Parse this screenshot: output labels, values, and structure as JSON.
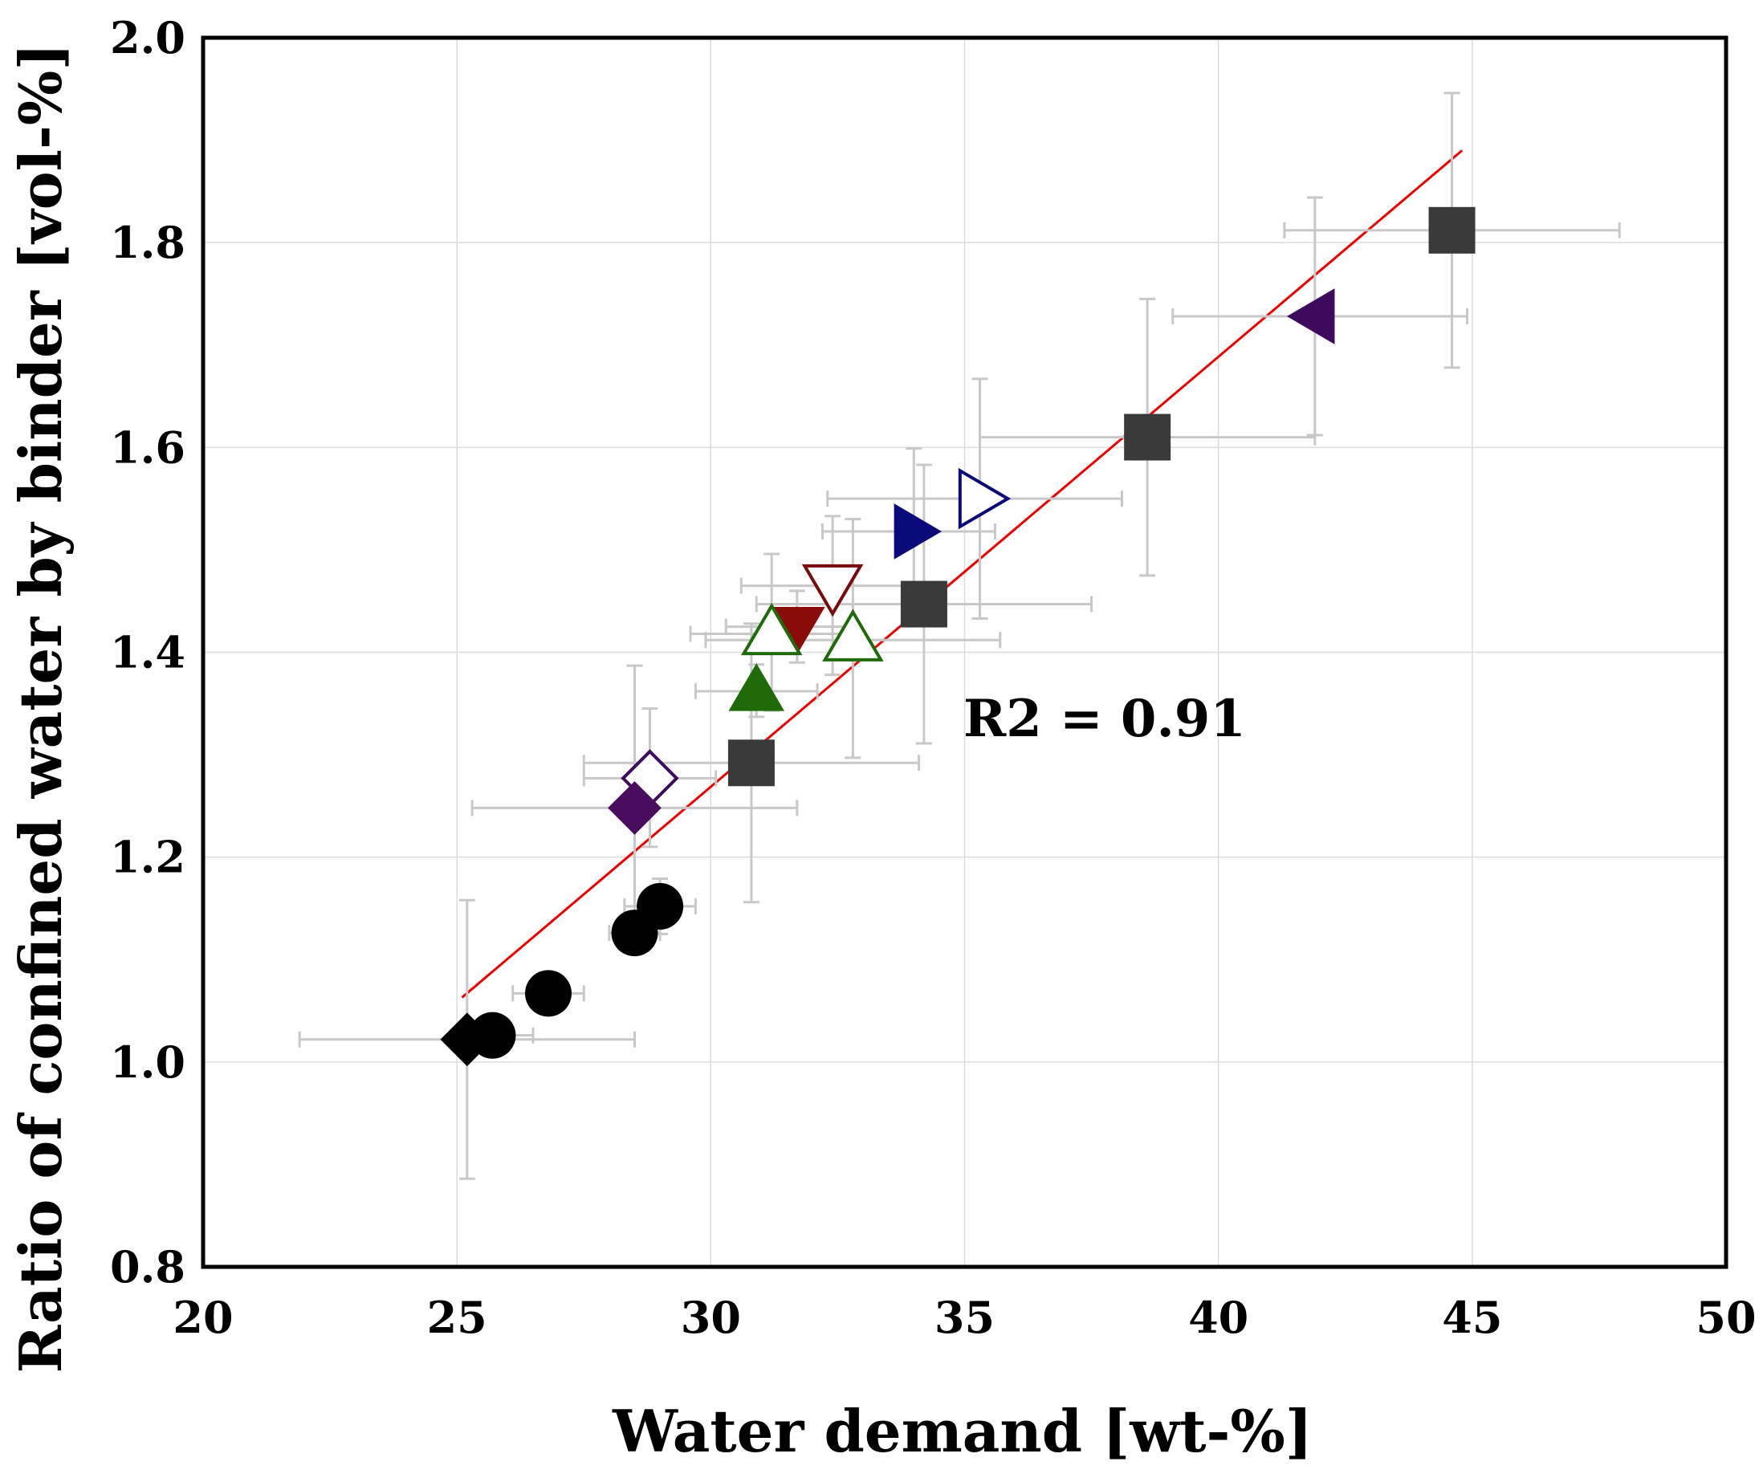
{
  "chart_data": {
    "type": "scatter",
    "title": "",
    "xlabel": "Water demand [wt-%]",
    "ylabel": "Ratio of confined water by binder [vol-%]",
    "xlim": [
      20,
      50
    ],
    "ylim": [
      0.8,
      2.0
    ],
    "x_ticks": [
      20,
      25,
      30,
      35,
      40,
      45,
      50
    ],
    "y_ticks": [
      0.8,
      1.0,
      1.2,
      1.4,
      1.6,
      1.8,
      2.0
    ],
    "x_tick_labels": [
      "20",
      "25",
      "30",
      "35",
      "40",
      "45",
      "50"
    ],
    "y_tick_labels": [
      "0.8",
      "1.0",
      "1.2",
      "1.4",
      "1.6",
      "1.8",
      "2.0"
    ],
    "grid": true,
    "legend": null,
    "annotation": "R2 = 0.91",
    "regression_line": {
      "color": "#ee0000",
      "x": [
        25.1,
        44.8
      ],
      "y": [
        1.063,
        1.89
      ]
    },
    "error_bar_color": "#c8c8c8",
    "points": [
      {
        "x": 44.6,
        "y": 1.812,
        "marker": "square",
        "fill": "#3a3a3a",
        "stroke": "#3a3a3a",
        "filled": true,
        "xerr": [
          41.3,
          47.9
        ],
        "yerr": [
          1.678,
          1.946
        ]
      },
      {
        "x": 38.6,
        "y": 1.61,
        "marker": "square",
        "fill": "#3a3a3a",
        "stroke": "#3a3a3a",
        "filled": true,
        "xerr": [
          35.3,
          41.9
        ],
        "yerr": [
          1.475,
          1.745
        ]
      },
      {
        "x": 34.2,
        "y": 1.447,
        "marker": "square",
        "fill": "#3a3a3a",
        "stroke": "#3a3a3a",
        "filled": true,
        "xerr": [
          30.9,
          37.5
        ],
        "yerr": [
          1.311,
          1.583
        ]
      },
      {
        "x": 30.8,
        "y": 1.292,
        "marker": "square",
        "fill": "#3a3a3a",
        "stroke": "#3a3a3a",
        "filled": true,
        "xerr": [
          27.5,
          34.1
        ],
        "yerr": [
          1.156,
          1.428
        ]
      },
      {
        "x": 41.9,
        "y": 1.728,
        "marker": "triangle-left",
        "fill": "#3d0a5e",
        "stroke": "#3d0a5e",
        "filled": true,
        "xerr": [
          39.1,
          44.9
        ],
        "yerr": [
          1.612,
          1.844
        ]
      },
      {
        "x": 34.0,
        "y": 1.518,
        "marker": "triangle-right",
        "fill": "#0a0a7a",
        "stroke": "#0a0a7a",
        "filled": true,
        "xerr": [
          32.2,
          35.6
        ],
        "yerr": [
          1.433,
          1.599
        ]
      },
      {
        "x": 35.3,
        "y": 1.55,
        "marker": "triangle-right",
        "fill": "#ffffff",
        "stroke": "#0a0a7a",
        "filled": false,
        "xerr": [
          32.3,
          38.1
        ],
        "yerr": [
          1.433,
          1.667
        ]
      },
      {
        "x": 32.4,
        "y": 1.465,
        "marker": "triangle-down",
        "fill": "#ffffff",
        "stroke": "#7a0a0a",
        "filled": false,
        "xerr": [
          30.6,
          34.2
        ],
        "yerr": [
          1.378,
          1.533
        ]
      },
      {
        "x": 31.7,
        "y": 1.425,
        "marker": "triangle-down",
        "fill": "#8b0a0a",
        "stroke": "#8b0a0a",
        "filled": true,
        "xerr": [
          30.3,
          32.8
        ],
        "yerr": [
          1.39,
          1.46
        ]
      },
      {
        "x": 31.2,
        "y": 1.418,
        "marker": "triangle-up",
        "fill": "#ffffff",
        "stroke": "#1f6b0a",
        "filled": false,
        "xerr": [
          29.6,
          32.8
        ],
        "yerr": [
          1.343,
          1.496
        ]
      },
      {
        "x": 32.8,
        "y": 1.412,
        "marker": "triangle-up",
        "fill": "#ffffff",
        "stroke": "#1f6b0a",
        "filled": false,
        "xerr": [
          29.9,
          35.7
        ],
        "yerr": [
          1.297,
          1.53
        ]
      },
      {
        "x": 30.9,
        "y": 1.362,
        "marker": "triangle-up",
        "fill": "#1f6b0a",
        "stroke": "#1f6b0a",
        "filled": true,
        "xerr": [
          29.7,
          32.1
        ],
        "yerr": [
          1.337,
          1.388
        ]
      },
      {
        "x": 28.8,
        "y": 1.277,
        "marker": "diamond",
        "fill": "#ffffff",
        "stroke": "#3d0a5e",
        "filled": false,
        "xerr": [
          27.5,
          30.1
        ],
        "yerr": [
          1.21,
          1.345
        ]
      },
      {
        "x": 28.5,
        "y": 1.248,
        "marker": "diamond",
        "fill": "#4a0a5e",
        "stroke": "#4a0a5e",
        "filled": true,
        "xerr": [
          25.3,
          31.7
        ],
        "yerr": [
          1.11,
          1.387
        ]
      },
      {
        "x": 29.0,
        "y": 1.152,
        "marker": "circle",
        "fill": "#000000",
        "stroke": "#000000",
        "filled": true,
        "xerr": [
          28.3,
          29.7
        ],
        "yerr": [
          1.125,
          1.179
        ]
      },
      {
        "x": 28.5,
        "y": 1.126,
        "marker": "circle",
        "fill": "#000000",
        "stroke": "#000000",
        "filled": true,
        "xerr": [
          28.0,
          29.0
        ],
        "yerr": [
          1.107,
          1.145
        ]
      },
      {
        "x": 26.8,
        "y": 1.067,
        "marker": "circle",
        "fill": "#000000",
        "stroke": "#000000",
        "filled": true,
        "xerr": [
          26.1,
          27.5
        ],
        "yerr": [
          1.05,
          1.084
        ]
      },
      {
        "x": 25.7,
        "y": 1.026,
        "marker": "circle",
        "fill": "#000000",
        "stroke": "#000000",
        "filled": true,
        "xerr": [
          25.0,
          26.5
        ],
        "yerr": [
          1.01,
          1.042
        ]
      },
      {
        "x": 25.2,
        "y": 1.022,
        "marker": "diamond",
        "fill": "#000000",
        "stroke": "#000000",
        "filled": true,
        "xerr": [
          21.9,
          28.5
        ],
        "yerr": [
          0.886,
          1.158
        ]
      }
    ]
  }
}
